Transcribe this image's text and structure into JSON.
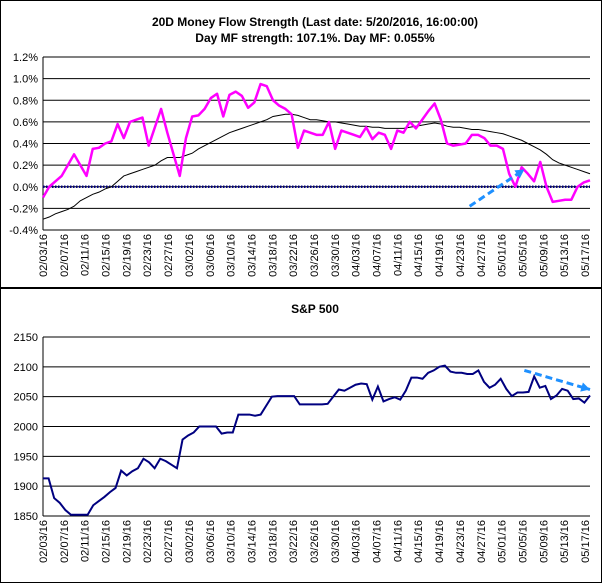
{
  "chart_data": [
    {
      "type": "line",
      "title": "20D Money Flow Strength (Last date: 5/20/2016, 16:00:00)",
      "subtitle": "Day MF strength: 107.1%. Day MF: 0.055%",
      "xlabel": "",
      "ylabel": "",
      "ylim": [
        -0.4,
        1.2
      ],
      "ytick_labels": [
        "1.2%",
        "1.0%",
        "0.8%",
        "0.6%",
        "0.4%",
        "0.2%",
        "0.0%",
        "-0.2%",
        "-0.4%"
      ],
      "grid": true,
      "legend": "none",
      "xtick_labels": [
        "02/03/16",
        "02/07/16",
        "02/11/16",
        "02/15/16",
        "02/19/16",
        "02/23/16",
        "02/27/16",
        "03/02/16",
        "03/06/16",
        "03/10/16",
        "03/14/16",
        "03/18/16",
        "03/22/16",
        "03/26/16",
        "03/30/16",
        "04/03/16",
        "04/07/16",
        "04/11/16",
        "04/15/16",
        "04/19/16",
        "04/23/16",
        "04/27/16",
        "05/01/16",
        "05/05/16",
        "05/09/16",
        "05/13/16",
        "05/17/16"
      ],
      "colors": {
        "daily": "#ff00ff",
        "smooth": "#000000",
        "zero_line": "#000080",
        "arrow": "#1e90ff"
      },
      "series": [
        {
          "values": [
            -0.1,
            0.0,
            0.05,
            0.1,
            0.2,
            0.3,
            0.2,
            0.1,
            0.35,
            0.36,
            0.4,
            0.42,
            0.58,
            0.45,
            0.6,
            0.62,
            0.64,
            0.38,
            0.55,
            0.72,
            0.5,
            0.3,
            0.1,
            0.45,
            0.65,
            0.66,
            0.72,
            0.82,
            0.86,
            0.65,
            0.85,
            0.88,
            0.84,
            0.73,
            0.78,
            0.95,
            0.93,
            0.8,
            0.75,
            0.72,
            0.67,
            0.36,
            0.52,
            0.5,
            0.48,
            0.48,
            0.6,
            0.35,
            0.52,
            0.5,
            0.48,
            0.46,
            0.55,
            0.44,
            0.5,
            0.48,
            0.35,
            0.52,
            0.5,
            0.6,
            0.54,
            0.62,
            0.7,
            0.77,
            0.62,
            0.4,
            0.38,
            0.39,
            0.4,
            0.48,
            0.48,
            0.45,
            0.38,
            0.38,
            0.35,
            0.12,
            0.0,
            0.18,
            0.12,
            0.05,
            0.23,
            0.0,
            -0.14,
            -0.13,
            -0.12,
            -0.12,
            0.0,
            0.04,
            0.06
          ]
        },
        {
          "values": [
            -0.3,
            -0.28,
            -0.25,
            -0.23,
            -0.21,
            -0.18,
            -0.13,
            -0.1,
            -0.07,
            -0.05,
            -0.02,
            0.0,
            0.05,
            0.1,
            0.12,
            0.14,
            0.16,
            0.18,
            0.2,
            0.24,
            0.27,
            0.27,
            0.27,
            0.29,
            0.31,
            0.35,
            0.38,
            0.41,
            0.44,
            0.47,
            0.5,
            0.52,
            0.54,
            0.56,
            0.58,
            0.6,
            0.62,
            0.65,
            0.66,
            0.67,
            0.67,
            0.66,
            0.64,
            0.62,
            0.62,
            0.61,
            0.6,
            0.6,
            0.59,
            0.58,
            0.57,
            0.56,
            0.56,
            0.55,
            0.55,
            0.54,
            0.54,
            0.54,
            0.54,
            0.55,
            0.56,
            0.57,
            0.58,
            0.59,
            0.58,
            0.56,
            0.55,
            0.55,
            0.54,
            0.53,
            0.53,
            0.52,
            0.51,
            0.5,
            0.49,
            0.47,
            0.45,
            0.43,
            0.4,
            0.37,
            0.34,
            0.3,
            0.25,
            0.22,
            0.2,
            0.18,
            0.16,
            0.14,
            0.12
          ]
        },
        {
          "values": [
            0.0,
            0.0
          ]
        }
      ],
      "annotations": [
        {
          "type": "arrow",
          "from": [
            78,
            -0.18
          ],
          "to": [
            88,
            0.16
          ]
        }
      ]
    },
    {
      "type": "line",
      "title": "S&P 500",
      "xlabel": "",
      "ylabel": "",
      "ylim": [
        1850,
        2150
      ],
      "ytick_labels": [
        "2150",
        "2100",
        "2050",
        "2000",
        "1950",
        "1900",
        "1850"
      ],
      "grid": true,
      "legend": "none",
      "xtick_labels": [
        "02/03/16",
        "02/07/16",
        "02/11/16",
        "02/15/16",
        "02/19/16",
        "02/23/16",
        "02/27/16",
        "03/02/16",
        "03/06/16",
        "03/10/16",
        "03/14/16",
        "03/18/16",
        "03/22/16",
        "03/26/16",
        "03/30/16",
        "04/03/16",
        "04/07/16",
        "04/11/16",
        "04/15/16",
        "04/19/16",
        "04/23/16",
        "04/27/16",
        "05/01/16",
        "05/05/16",
        "05/09/16",
        "05/13/16",
        "05/17/16"
      ],
      "colors": {
        "price": "#000080",
        "arrow": "#1e90ff"
      },
      "series": [
        {
          "values": [
            1913,
            1913,
            1880,
            1872,
            1860,
            1852,
            1852,
            1852,
            1852,
            1868,
            1875,
            1882,
            1890,
            1897,
            1926,
            1918,
            1925,
            1930,
            1946,
            1940,
            1930,
            1946,
            1942,
            1936,
            1930,
            1978,
            1985,
            1990,
            2000,
            2000,
            2000,
            2000,
            1988,
            1990,
            1990,
            2020,
            2020,
            2020,
            2018,
            2020,
            2035,
            2050,
            2051,
            2051,
            2051,
            2051,
            2037,
            2037,
            2037,
            2037,
            2037,
            2038,
            2050,
            2062,
            2060,
            2065,
            2070,
            2072,
            2071,
            2045,
            2067,
            2042,
            2046,
            2049,
            2045,
            2060,
            2082,
            2082,
            2080,
            2090,
            2094,
            2100,
            2102,
            2092,
            2090,
            2090,
            2088,
            2088,
            2094,
            2075,
            2065,
            2070,
            2080,
            2063,
            2051,
            2057,
            2057,
            2058,
            2084,
            2065,
            2068,
            2046,
            2052,
            2063,
            2060,
            2046,
            2047,
            2040,
            2052
          ]
        }
      ],
      "annotations": [
        {
          "type": "arrow",
          "from": [
            88,
            2094
          ],
          "to": [
            100,
            2062
          ]
        }
      ]
    }
  ]
}
